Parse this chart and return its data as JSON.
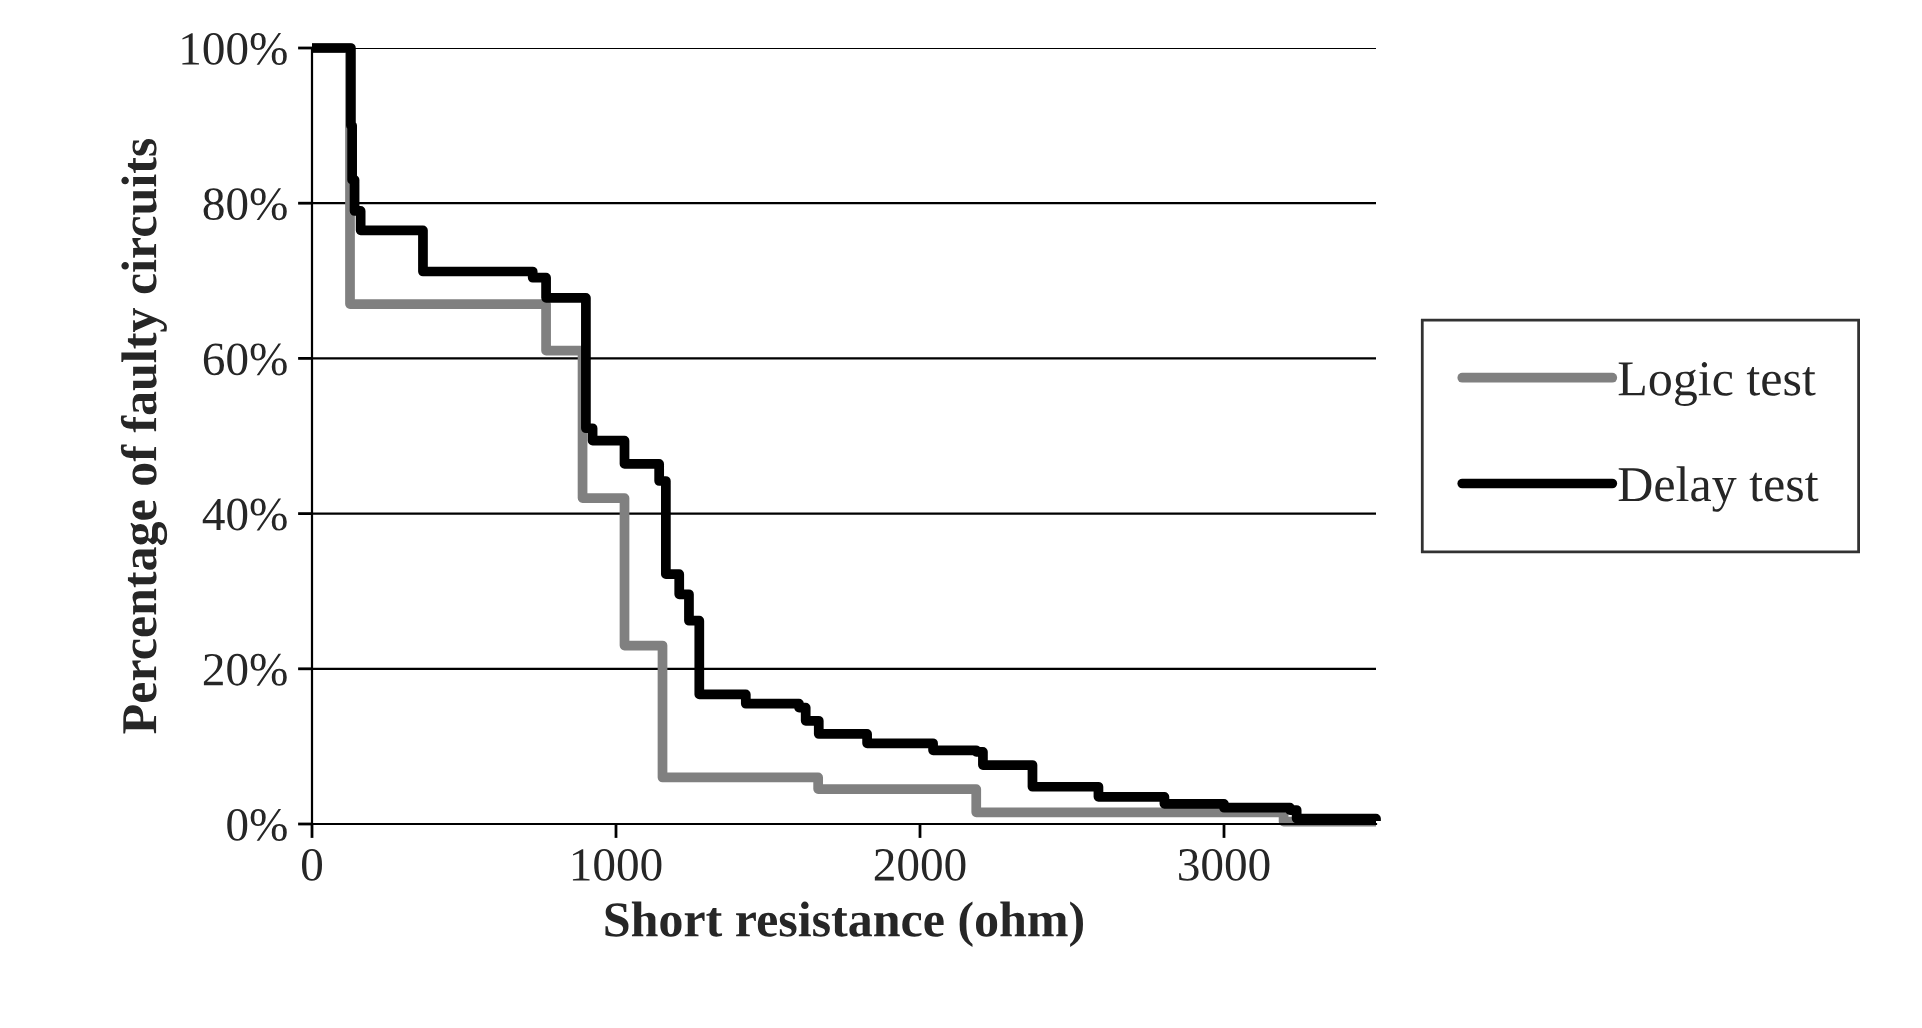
{
  "chart_data": {
    "type": "step",
    "xlabel": "Short resistance (ohm)",
    "ylabel": "Percentage of faulty circuits",
    "xlim": [
      0,
      3500
    ],
    "xticks": [
      0,
      1000,
      2000,
      3000
    ],
    "ylim": [
      0,
      100
    ],
    "yticks": [
      {
        "value": 0,
        "label": "0%"
      },
      {
        "value": 20,
        "label": "20%"
      },
      {
        "value": 40,
        "label": "40%"
      },
      {
        "value": 60,
        "label": "60%"
      },
      {
        "value": 80,
        "label": "80%"
      },
      {
        "value": 100,
        "label": "100%"
      }
    ],
    "grid": "y",
    "legend": "right",
    "series": [
      {
        "name": "Logic test",
        "color": "#808080",
        "x": [
          0,
          125,
          770,
          890,
          1028,
          1153,
          1665,
          2185,
          3196,
          3500
        ],
        "values": [
          100,
          67,
          61,
          42,
          23,
          6,
          4.5,
          1.5,
          0.3,
          0.3
        ]
      },
      {
        "name": "Delay test",
        "color": "#000000",
        "x": [
          0,
          125,
          128,
          132,
          140,
          160,
          365,
          726,
          770,
          901,
          923,
          1028,
          1142,
          1164,
          1208,
          1240,
          1274,
          1427,
          1602,
          1624,
          1667,
          1826,
          2043,
          2185,
          2207,
          2370,
          2587,
          2804,
          3000,
          3217,
          3239,
          3500
        ],
        "values": [
          100,
          100,
          90,
          83,
          79,
          76.5,
          71.2,
          70.4,
          67.8,
          51,
          49.4,
          46.4,
          44.2,
          32.2,
          29.6,
          26.2,
          16.7,
          15.5,
          15,
          13.3,
          11.6,
          10.4,
          9.5,
          9.3,
          7.6,
          4.8,
          3.5,
          2.6,
          2.1,
          1.8,
          0.7,
          0.4
        ]
      }
    ]
  }
}
